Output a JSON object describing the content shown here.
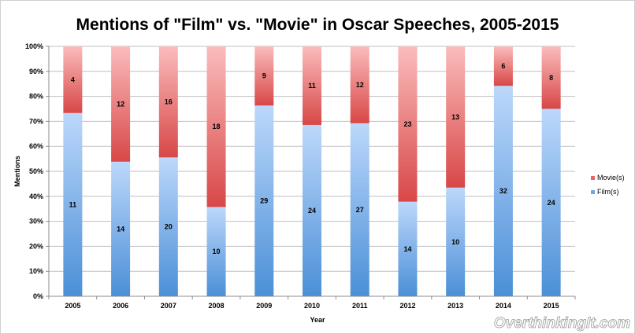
{
  "chart_data": {
    "type": "bar",
    "stacked": "percent",
    "title": "Mentions of \"Film\" vs. \"Movie\" in Oscar Speeches, 2005-2015",
    "xlabel": "Year",
    "ylabel": "Mentions",
    "ylim": [
      0,
      100
    ],
    "yticks": [
      "0%",
      "10%",
      "20%",
      "30%",
      "40%",
      "50%",
      "60%",
      "70%",
      "80%",
      "90%",
      "100%"
    ],
    "categories": [
      "2005",
      "2006",
      "2007",
      "2008",
      "2009",
      "2010",
      "2011",
      "2012",
      "2013",
      "2014",
      "2015"
    ],
    "series": [
      {
        "name": "Film(s)",
        "values": [
          11,
          14,
          20,
          10,
          29,
          24,
          27,
          14,
          10,
          32,
          24
        ],
        "color": "#6fa8e8"
      },
      {
        "name": "Movie(s)",
        "values": [
          4,
          12,
          16,
          18,
          9,
          11,
          12,
          23,
          13,
          6,
          8
        ],
        "color": "#e86464"
      }
    ],
    "legend_position": "right",
    "grid": true
  },
  "watermark": "OverthinkingIt.com"
}
